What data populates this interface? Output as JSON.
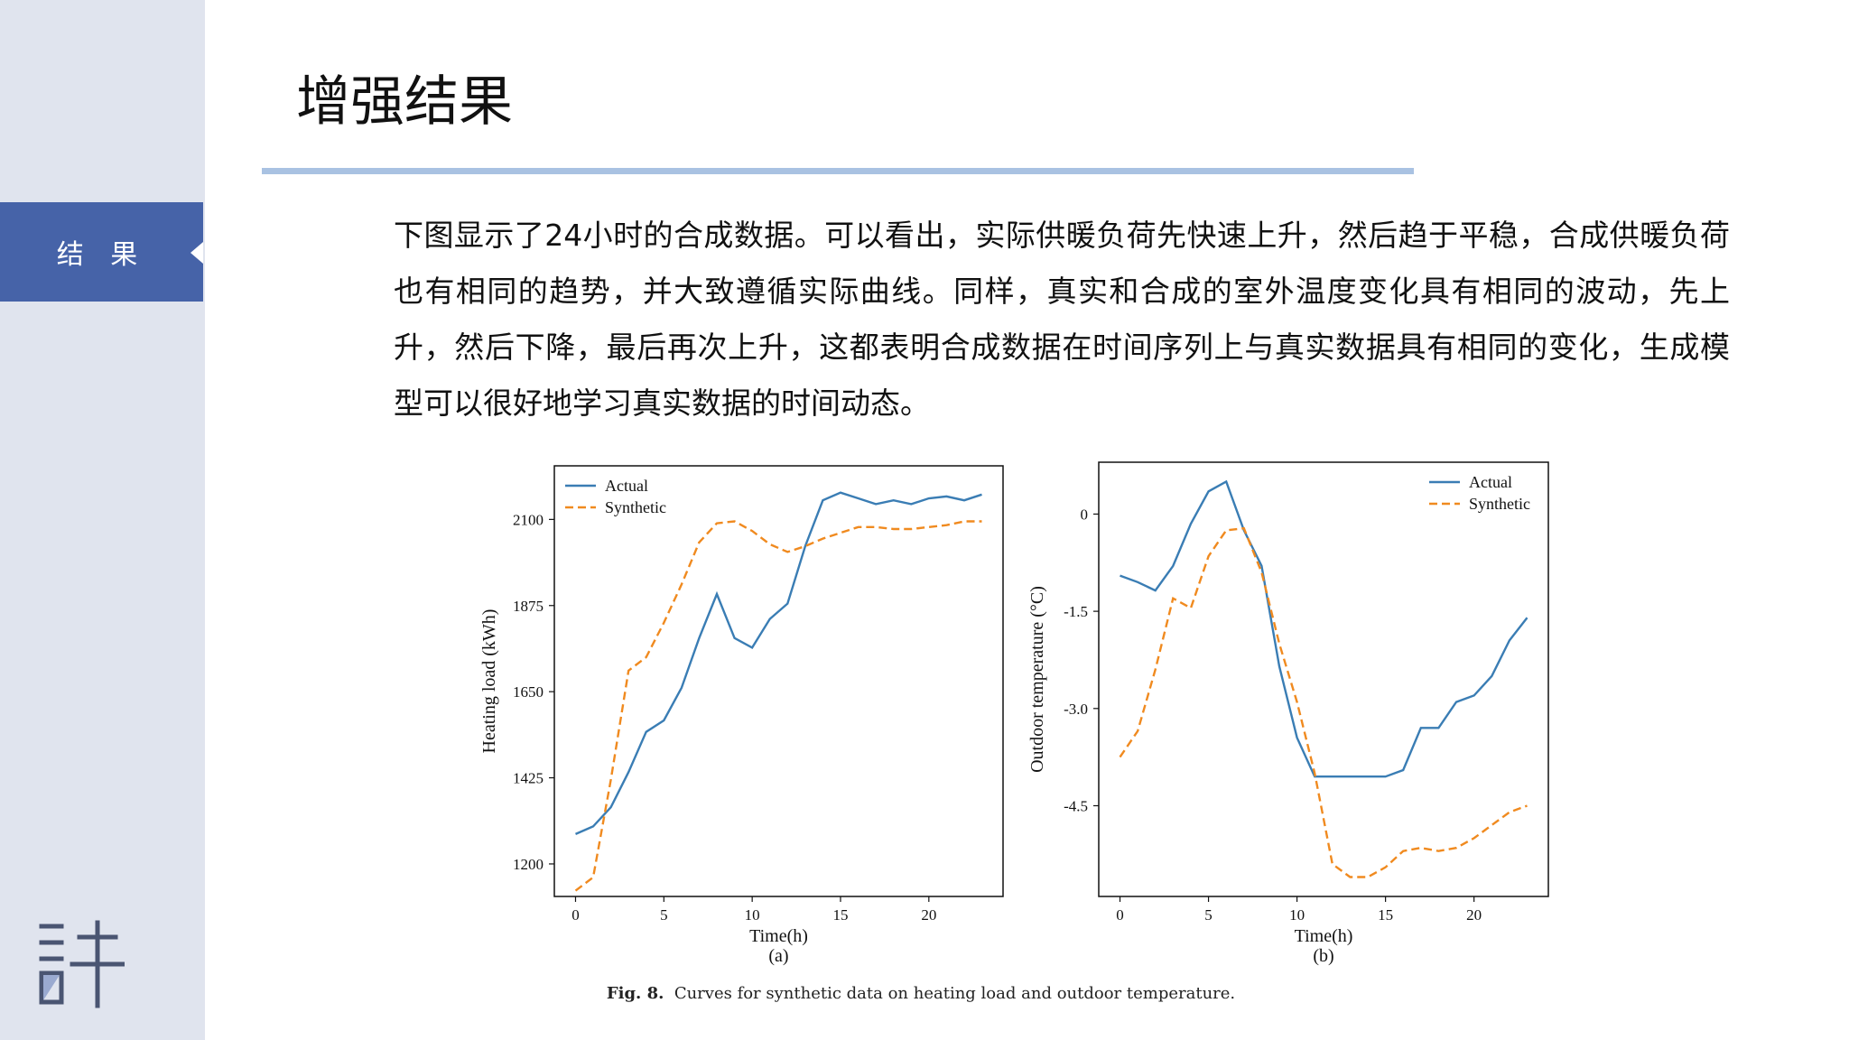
{
  "slide": {
    "title": "增强结果",
    "section_tab": "结 果",
    "paragraph": "下图显示了24小时的合成数据。可以看出，实际供暖负荷先快速上升，然后趋于平稳，合成供暖负荷也有相同的趋势，并大致遵循实际曲线。同样，真实和合成的室外温度变化具有相同的波动，先上升，然后下降，最后再次上升，这都表明合成数据在时间序列上与真实数据具有相同的变化，生成模型可以很好地学习真实数据的时间动态。",
    "caption_label": "Fig. 8.",
    "caption_text": "Curves for synthetic data on heating load and outdoor temperature.",
    "logo_icon": "xu-character-logo-icon"
  },
  "colors": {
    "accent": "#4663a8",
    "sidebar": "#e0e4ee",
    "rule": "#a9c2e2",
    "actual": "#3a7db4",
    "synthetic": "#f08a1f"
  },
  "chart_data": [
    {
      "type": "line",
      "panel_label": "(a)",
      "xlabel": "Time(h)",
      "ylabel": "Heating load (kWh)",
      "xlim": [
        -1.2,
        24.2
      ],
      "ylim": [
        1115,
        2240
      ],
      "xticks": [
        0,
        5,
        10,
        15,
        20
      ],
      "yticks": [
        1200,
        1425,
        1650,
        1875,
        2100
      ],
      "legend_position": "top-left",
      "x": [
        0,
        1,
        2,
        3,
        4,
        5,
        6,
        7,
        8,
        9,
        10,
        11,
        12,
        13,
        14,
        15,
        16,
        17,
        18,
        19,
        20,
        21,
        22,
        23
      ],
      "series": [
        {
          "name": "Actual",
          "style": "solid",
          "values": [
            1278,
            1298,
            1348,
            1440,
            1545,
            1575,
            1660,
            1790,
            1905,
            1790,
            1765,
            1840,
            1880,
            2030,
            2150,
            2170,
            2155,
            2140,
            2150,
            2140,
            2155,
            2160,
            2150,
            2165
          ]
        },
        {
          "name": "Synthetic",
          "style": "dashed",
          "values": [
            1130,
            1165,
            1420,
            1705,
            1740,
            1830,
            1930,
            2040,
            2090,
            2095,
            2070,
            2035,
            2015,
            2030,
            2050,
            2065,
            2080,
            2080,
            2075,
            2075,
            2080,
            2085,
            2095,
            2095
          ]
        }
      ]
    },
    {
      "type": "line",
      "panel_label": "(b)",
      "xlabel": "Time(h)",
      "ylabel": "Outdoor temperature (°C)",
      "xlim": [
        -1.2,
        24.2
      ],
      "ylim": [
        -5.9,
        0.8
      ],
      "xticks": [
        0,
        5,
        10,
        15,
        20
      ],
      "yticks": [
        0,
        -1.5,
        -3.0,
        -4.5
      ],
      "ytick_labels": [
        "0",
        "-1.5",
        "-3.0",
        "-4.5"
      ],
      "legend_position": "top-right",
      "x": [
        0,
        1,
        2,
        3,
        4,
        5,
        6,
        7,
        8,
        9,
        10,
        11,
        12,
        13,
        14,
        15,
        16,
        17,
        18,
        19,
        20,
        21,
        22,
        23
      ],
      "series": [
        {
          "name": "Actual",
          "style": "solid",
          "values": [
            -0.95,
            -1.05,
            -1.18,
            -0.8,
            -0.15,
            0.35,
            0.5,
            -0.25,
            -0.8,
            -2.35,
            -3.45,
            -4.05,
            -4.05,
            -4.05,
            -4.05,
            -4.05,
            -3.95,
            -3.3,
            -3.3,
            -2.9,
            -2.8,
            -2.5,
            -1.95,
            -1.6
          ]
        },
        {
          "name": "Synthetic",
          "style": "dashed",
          "values": [
            -3.75,
            -3.35,
            -2.4,
            -1.3,
            -1.45,
            -0.65,
            -0.25,
            -0.22,
            -0.9,
            -2.0,
            -2.9,
            -4.0,
            -5.4,
            -5.6,
            -5.6,
            -5.45,
            -5.2,
            -5.15,
            -5.2,
            -5.15,
            -5.0,
            -4.8,
            -4.6,
            -4.5
          ]
        }
      ]
    }
  ]
}
